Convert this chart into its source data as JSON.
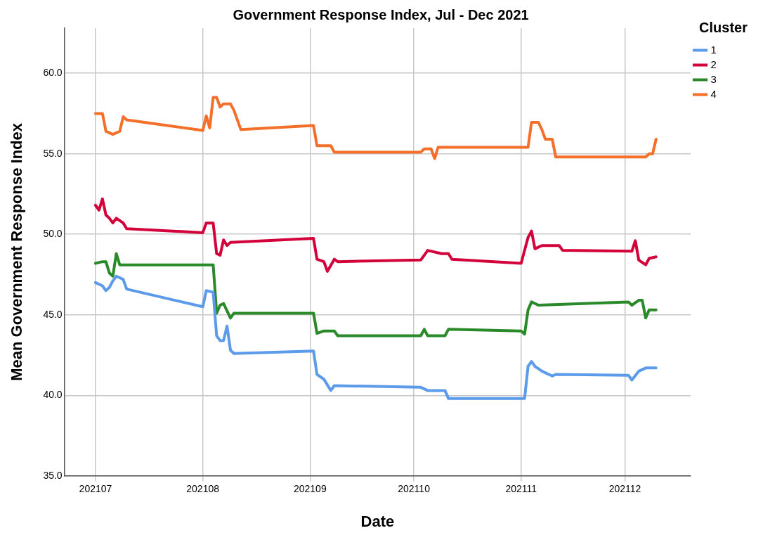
{
  "chart_data": {
    "type": "line",
    "title": "Government Response Index, Jul - Dec 2021",
    "xlabel": "Date",
    "ylabel": "Mean Government Response Index",
    "legend_title": "Cluster",
    "legend": "top right",
    "grid": true,
    "marker": "none",
    "xlim": [
      "2021-06-22",
      "2021-12-20"
    ],
    "xticks": [
      {
        "value": "2021-07-01",
        "label": "202107"
      },
      {
        "value": "2021-08-01",
        "label": "202108"
      },
      {
        "value": "2021-09-01",
        "label": "202109"
      },
      {
        "value": "2021-10-01",
        "label": "202110"
      },
      {
        "value": "2021-11-01",
        "label": "202111"
      },
      {
        "value": "2021-12-01",
        "label": "202112"
      }
    ],
    "ylim": [
      35,
      62.8
    ],
    "yticks": [
      {
        "value": 35,
        "label": "35.0"
      },
      {
        "value": 40,
        "label": "40.0"
      },
      {
        "value": 45,
        "label": "45.0"
      },
      {
        "value": 50,
        "label": "50.0"
      },
      {
        "value": 55,
        "label": "55.0"
      },
      {
        "value": 60,
        "label": "60.0"
      }
    ],
    "series": [
      {
        "name": "1",
        "color": "#5b9bea",
        "x": [
          "2021-07-01",
          "2021-07-03",
          "2021-07-04",
          "2021-07-05",
          "2021-07-06",
          "2021-07-07",
          "2021-07-08",
          "2021-07-09",
          "2021-07-10",
          "2021-08-01",
          "2021-08-02",
          "2021-08-04",
          "2021-08-05",
          "2021-08-06",
          "2021-08-07",
          "2021-08-08",
          "2021-08-09",
          "2021-08-10",
          "2021-09-02",
          "2021-09-03",
          "2021-09-05",
          "2021-09-07",
          "2021-09-08",
          "2021-10-03",
          "2021-10-05",
          "2021-10-10",
          "2021-10-11",
          "2021-11-02",
          "2021-11-03",
          "2021-11-04",
          "2021-11-05",
          "2021-11-07",
          "2021-11-10",
          "2021-11-11",
          "2021-12-02",
          "2021-12-03",
          "2021-12-05",
          "2021-12-07",
          "2021-12-10"
        ],
        "values": [
          47.0,
          46.8,
          46.5,
          46.7,
          47.1,
          47.4,
          47.3,
          47.2,
          46.6,
          45.5,
          46.5,
          46.4,
          43.7,
          43.4,
          43.4,
          44.3,
          42.8,
          42.6,
          42.75,
          41.3,
          41.0,
          40.3,
          40.6,
          40.5,
          40.3,
          40.3,
          39.8,
          39.8,
          41.8,
          42.1,
          41.8,
          41.5,
          41.2,
          41.3,
          41.25,
          40.95,
          41.5,
          41.7,
          41.7
        ]
      },
      {
        "name": "2",
        "color": "#d3023b",
        "x": [
          "2021-07-01",
          "2021-07-02",
          "2021-07-03",
          "2021-07-04",
          "2021-07-05",
          "2021-07-06",
          "2021-07-07",
          "2021-07-09",
          "2021-07-10",
          "2021-08-01",
          "2021-08-02",
          "2021-08-04",
          "2021-08-05",
          "2021-08-06",
          "2021-08-07",
          "2021-08-08",
          "2021-08-09",
          "2021-09-02",
          "2021-09-03",
          "2021-09-05",
          "2021-09-06",
          "2021-09-08",
          "2021-09-09",
          "2021-10-03",
          "2021-10-05",
          "2021-10-09",
          "2021-10-11",
          "2021-10-12",
          "2021-11-01",
          "2021-11-03",
          "2021-11-04",
          "2021-11-05",
          "2021-11-07",
          "2021-11-12",
          "2021-11-13",
          "2021-12-03",
          "2021-12-04",
          "2021-12-05",
          "2021-12-07",
          "2021-12-08",
          "2021-12-10"
        ],
        "values": [
          51.8,
          51.5,
          52.2,
          51.2,
          51.0,
          50.7,
          51.0,
          50.7,
          50.35,
          50.1,
          50.7,
          50.7,
          48.8,
          48.7,
          49.65,
          49.3,
          49.5,
          49.75,
          48.45,
          48.3,
          47.7,
          48.45,
          48.3,
          48.4,
          49.0,
          48.8,
          48.8,
          48.45,
          48.2,
          49.8,
          50.2,
          49.1,
          49.3,
          49.3,
          49.0,
          48.95,
          49.6,
          48.4,
          48.1,
          48.5,
          48.6
        ]
      },
      {
        "name": "3",
        "color": "#2a8a2a",
        "x": [
          "2021-07-01",
          "2021-07-03",
          "2021-07-04",
          "2021-07-05",
          "2021-07-06",
          "2021-07-07",
          "2021-07-08",
          "2021-08-04",
          "2021-08-05",
          "2021-08-06",
          "2021-08-07",
          "2021-08-09",
          "2021-08-10",
          "2021-09-02",
          "2021-09-03",
          "2021-09-05",
          "2021-09-08",
          "2021-09-09",
          "2021-10-03",
          "2021-10-04",
          "2021-10-05",
          "2021-10-10",
          "2021-10-11",
          "2021-11-01",
          "2021-11-02",
          "2021-11-03",
          "2021-11-04",
          "2021-11-06",
          "2021-12-02",
          "2021-12-03",
          "2021-12-05",
          "2021-12-06",
          "2021-12-07",
          "2021-12-08",
          "2021-12-10"
        ],
        "values": [
          48.2,
          48.3,
          48.3,
          47.6,
          47.4,
          48.8,
          48.1,
          48.1,
          45.1,
          45.6,
          45.7,
          44.8,
          45.1,
          45.1,
          43.85,
          44.0,
          44.0,
          43.7,
          43.7,
          44.1,
          43.7,
          43.7,
          44.1,
          44.0,
          43.8,
          45.3,
          45.8,
          45.6,
          45.8,
          45.6,
          45.9,
          45.9,
          44.8,
          45.3,
          45.3
        ]
      },
      {
        "name": "4",
        "color": "#f46f2a",
        "x": [
          "2021-07-01",
          "2021-07-03",
          "2021-07-04",
          "2021-07-06",
          "2021-07-08",
          "2021-07-09",
          "2021-07-10",
          "2021-08-01",
          "2021-08-02",
          "2021-08-03",
          "2021-08-04",
          "2021-08-05",
          "2021-08-06",
          "2021-08-07",
          "2021-08-09",
          "2021-08-10",
          "2021-08-11",
          "2021-08-12",
          "2021-09-02",
          "2021-09-03",
          "2021-09-07",
          "2021-09-08",
          "2021-10-03",
          "2021-10-04",
          "2021-10-06",
          "2021-10-07",
          "2021-10-08",
          "2021-11-03",
          "2021-11-04",
          "2021-11-06",
          "2021-11-07",
          "2021-11-08",
          "2021-11-10",
          "2021-11-11",
          "2021-12-07",
          "2021-12-08",
          "2021-12-09",
          "2021-12-10"
        ],
        "values": [
          57.5,
          57.5,
          56.4,
          56.2,
          56.4,
          57.3,
          57.1,
          56.45,
          57.35,
          56.6,
          58.5,
          58.5,
          57.9,
          58.1,
          58.1,
          57.7,
          57.1,
          56.5,
          56.75,
          55.5,
          55.5,
          55.1,
          55.1,
          55.3,
          55.3,
          54.7,
          55.4,
          55.4,
          56.95,
          56.95,
          56.5,
          55.9,
          55.9,
          54.8,
          54.8,
          55.0,
          55.0,
          55.9
        ]
      }
    ]
  }
}
